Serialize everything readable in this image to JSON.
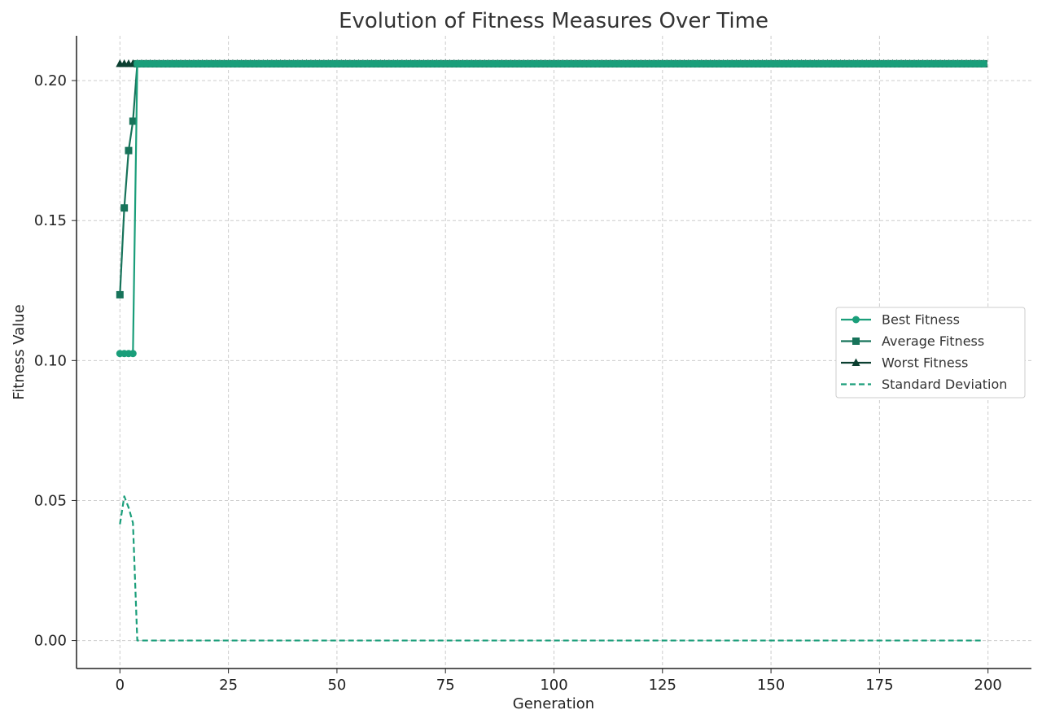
{
  "chart_data": {
    "type": "line",
    "title": "Evolution of Fitness Measures Over Time",
    "xlabel": "Generation",
    "ylabel": "Fitness Value",
    "xlim": [
      -10,
      210
    ],
    "ylim": [
      -0.01,
      0.216
    ],
    "xticks": [
      0,
      25,
      50,
      75,
      100,
      125,
      150,
      175,
      200
    ],
    "xtick_labels": [
      "0",
      "25",
      "50",
      "75",
      "100",
      "125",
      "150",
      "175",
      "200"
    ],
    "yticks": [
      0.0,
      0.05,
      0.1,
      0.15,
      0.2
    ],
    "ytick_labels": [
      "0.00",
      "0.05",
      "0.10",
      "0.15",
      "0.20"
    ],
    "grid": true,
    "legend_position": "center-right",
    "generations": {
      "start": 0,
      "end": 199,
      "step": 1
    },
    "series": [
      {
        "name": "Best Fitness",
        "marker": "circle",
        "line_style": "solid",
        "color": "#1a9e7a",
        "initial_values": [
          0.1025,
          0.1025,
          0.1025,
          0.1025
        ],
        "steady_value": 0.206
      },
      {
        "name": "Average Fitness",
        "marker": "square",
        "line_style": "solid",
        "color": "#17735a",
        "initial_values": [
          0.1235,
          0.1545,
          0.175,
          0.1855
        ],
        "steady_value": 0.206
      },
      {
        "name": "Worst Fitness",
        "marker": "triangle",
        "line_style": "solid",
        "color": "#0b3f30",
        "initial_values": [
          0.206,
          0.206,
          0.206,
          0.206
        ],
        "steady_value": 0.206
      },
      {
        "name": "Standard Deviation",
        "marker": "none",
        "line_style": "dashed",
        "color": "#1a9e7a",
        "initial_values": [
          0.0415,
          0.0515,
          0.0475,
          0.042
        ],
        "steady_value": 0.0
      }
    ]
  }
}
